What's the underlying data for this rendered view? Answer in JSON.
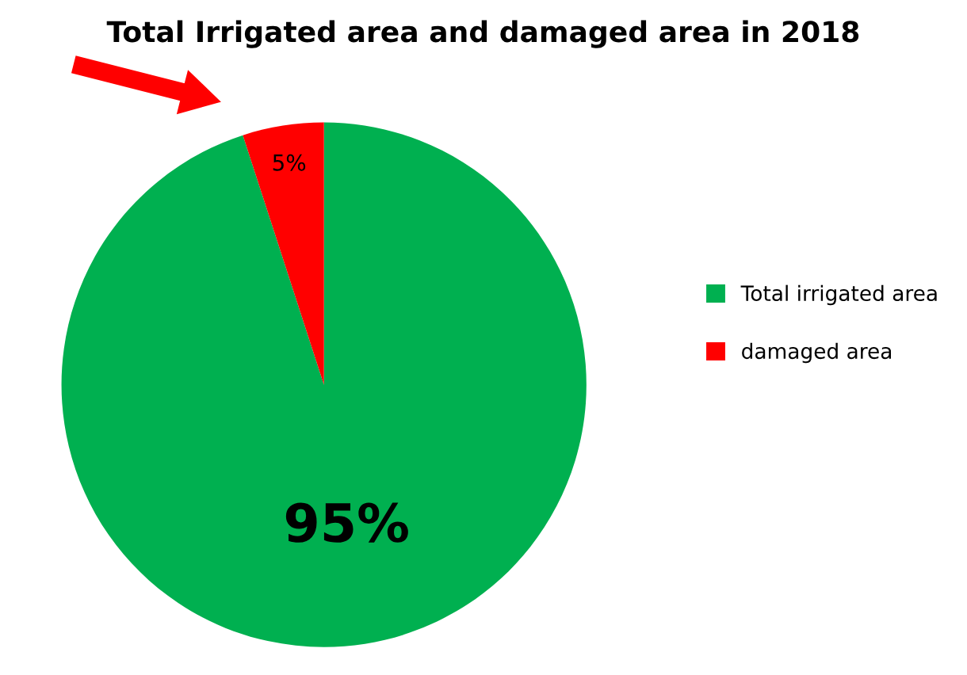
{
  "chart_data": {
    "type": "pie",
    "title": "Total Irrigated area and damaged area in 2018",
    "categories": [
      "Total irrigated area",
      "damaged area"
    ],
    "values": [
      95,
      5
    ],
    "colors": [
      "#00b050",
      "#ff0000"
    ],
    "value_labels": [
      "95%",
      "5%"
    ],
    "legend": "right"
  }
}
